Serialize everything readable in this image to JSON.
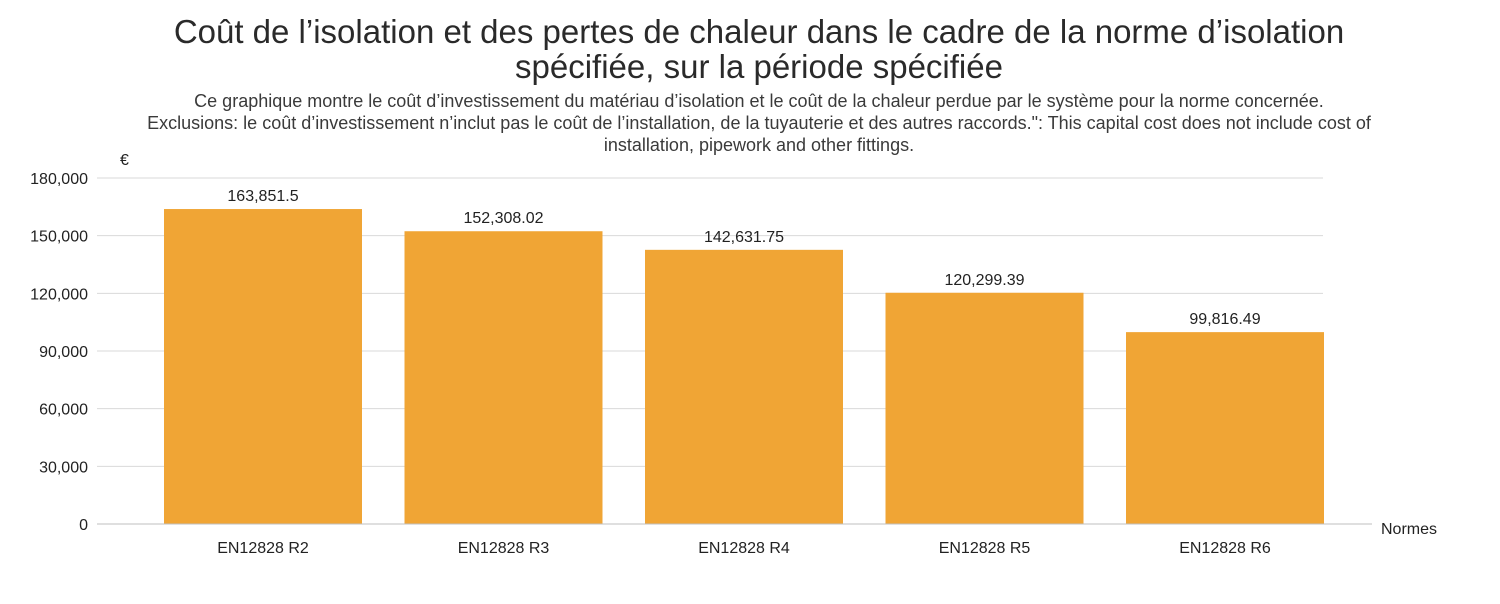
{
  "header": {
    "title_line1": "Coût de l’isolation et des pertes de chaleur dans le cadre de la norme d’isolation",
    "title_line2": "spécifiée, sur la période spécifiée",
    "subtitle_line1": "Ce graphique montre le coût d’investissement du matériau d’isolation et le coût de la chaleur perdue par le système pour la norme concernée.",
    "subtitle_line2": "Exclusions: le coût d’investissement n’inclut pas le coût de l’installation, de la tuyauterie et des autres raccords.\": This capital cost does not include cost of",
    "subtitle_line3": "installation, pipework and other fittings."
  },
  "chart_data": {
    "type": "bar",
    "title": "Coût de l’isolation et des pertes de chaleur dans le cadre de la norme d’isolation spécifiée, sur la période spécifiée",
    "xlabel": "Normes",
    "ylabel": "€",
    "categories": [
      "EN12828 R2",
      "EN12828 R3",
      "EN12828 R4",
      "EN12828 R5",
      "EN12828 R6"
    ],
    "values": [
      163851.5,
      152308.02,
      142631.75,
      120299.39,
      99816.49
    ],
    "value_labels": [
      "163,851.5",
      "152,308.02",
      "142,631.75",
      "120,299.39",
      "99,816.49"
    ],
    "ylim": [
      0,
      180000
    ],
    "yticks": [
      0,
      30000,
      60000,
      90000,
      120000,
      150000,
      180000
    ],
    "ytick_labels": [
      "0",
      "30,000",
      "60,000",
      "90,000",
      "120,000",
      "150,000",
      "180,000"
    ],
    "grid": true,
    "bar_color": "#f0a535",
    "grid_color": "#d9d9d9",
    "axis_color": "#bfbfbf"
  }
}
